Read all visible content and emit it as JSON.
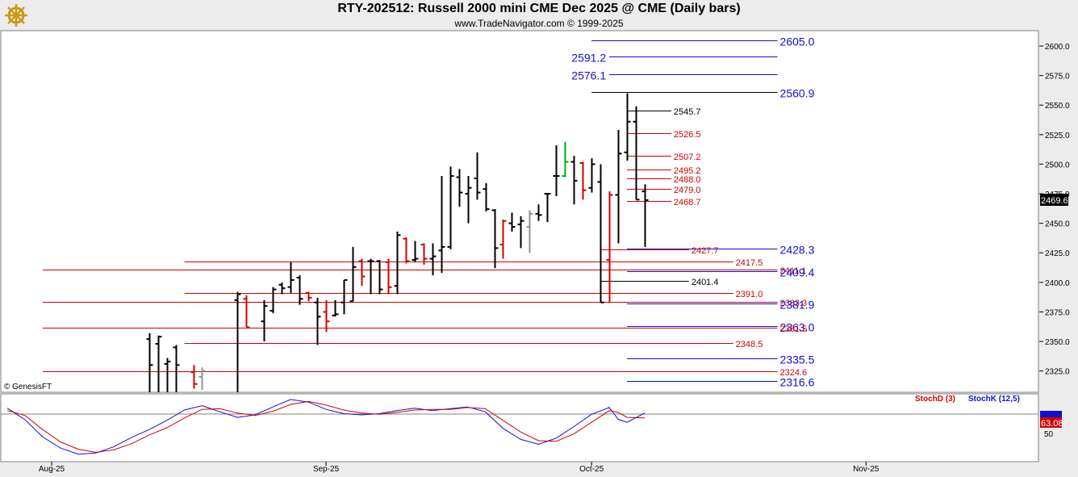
{
  "header": {
    "title": "RTY-202512:  Russell 2000 mini CME Dec 2025 @ CME  (Daily bars)",
    "subtitle": "www.TradeNavigator.com © 1999-2025"
  },
  "watermark": "© GenesisFT",
  "colors": {
    "blue": "#1010d0",
    "red": "#d00000",
    "black": "#000000",
    "stochD": "#d00000",
    "stochK": "#1010d0"
  },
  "chart_data": {
    "type": "ohlc",
    "price_axis": {
      "ticks": [
        "2600.0",
        "2575.0",
        "2550.0",
        "2525.0",
        "2500.0",
        "2475.0",
        "2450.0",
        "2425.0",
        "2400.0",
        "2375.0",
        "2350.0",
        "2325.0"
      ],
      "range": [
        2307,
        2613
      ]
    },
    "last_price": "2469.6",
    "x_labels": [
      {
        "label": "Aug-25",
        "t": 6
      },
      {
        "label": "Sep-25",
        "t": 37
      },
      {
        "label": "Oct-25",
        "t": 67
      },
      {
        "label": "Nov-25",
        "t": 98
      }
    ],
    "bars": [
      {
        "t": 17,
        "o": 2352,
        "h": 2357,
        "l": 2300,
        "c": 2330,
        "color": "black"
      },
      {
        "t": 18,
        "o": 2348,
        "h": 2355,
        "l": 2300,
        "c": 2354,
        "color": "black"
      },
      {
        "t": 19,
        "o": 2331,
        "h": 2336,
        "l": 2300,
        "c": 2333,
        "color": "black"
      },
      {
        "t": 20,
        "o": 2345,
        "h": 2347,
        "l": 2300,
        "c": 2330,
        "color": "black"
      },
      {
        "t": 22,
        "o": 2324,
        "h": 2330,
        "l": 2310,
        "c": 2314,
        "color": "red"
      },
      {
        "t": 23,
        "o": 2320,
        "h": 2328,
        "l": 2309,
        "c": 2325,
        "color": "gray"
      },
      {
        "t": 27,
        "o": 2385,
        "h": 2392,
        "l": 2300,
        "c": 2390,
        "color": "black"
      },
      {
        "t": 28,
        "o": 2386,
        "h": 2389,
        "l": 2362,
        "c": 2362,
        "color": "red"
      },
      {
        "t": 30,
        "o": 2367,
        "h": 2385,
        "l": 2350,
        "c": 2380,
        "color": "black"
      },
      {
        "t": 31,
        "o": 2376,
        "h": 2396,
        "l": 2374,
        "c": 2394,
        "color": "black"
      },
      {
        "t": 32,
        "o": 2398,
        "h": 2400,
        "l": 2390,
        "c": 2395,
        "color": "black"
      },
      {
        "t": 33,
        "o": 2396,
        "h": 2417,
        "l": 2391,
        "c": 2402,
        "color": "black"
      },
      {
        "t": 34,
        "o": 2404,
        "h": 2406,
        "l": 2381,
        "c": 2386,
        "color": "black"
      },
      {
        "t": 35,
        "o": 2391,
        "h": 2392,
        "l": 2384,
        "c": 2387,
        "color": "red"
      },
      {
        "t": 36,
        "o": 2383,
        "h": 2387,
        "l": 2347,
        "c": 2371,
        "color": "black"
      },
      {
        "t": 37,
        "o": 2375,
        "h": 2385,
        "l": 2358,
        "c": 2367,
        "color": "red"
      },
      {
        "t": 38,
        "o": 2372,
        "h": 2385,
        "l": 2371,
        "c": 2373,
        "color": "black"
      },
      {
        "t": 39,
        "o": 2383,
        "h": 2402,
        "l": 2373,
        "c": 2402,
        "color": "black"
      },
      {
        "t": 40,
        "o": 2384,
        "h": 2430,
        "l": 2384,
        "c": 2413,
        "color": "black"
      },
      {
        "t": 41,
        "o": 2418,
        "h": 2420,
        "l": 2397,
        "c": 2405,
        "color": "red"
      },
      {
        "t": 42,
        "o": 2418,
        "h": 2420,
        "l": 2390,
        "c": 2418,
        "color": "black"
      },
      {
        "t": 43,
        "o": 2418,
        "h": 2419,
        "l": 2390,
        "c": 2394,
        "color": "black"
      },
      {
        "t": 44,
        "o": 2417,
        "h": 2420,
        "l": 2390,
        "c": 2396,
        "color": "red"
      },
      {
        "t": 45,
        "o": 2397,
        "h": 2443,
        "l": 2390,
        "c": 2440,
        "color": "black"
      },
      {
        "t": 46,
        "o": 2437,
        "h": 2438,
        "l": 2416,
        "c": 2418,
        "color": "red"
      },
      {
        "t": 47,
        "o": 2419,
        "h": 2435,
        "l": 2417,
        "c": 2420,
        "color": "black"
      },
      {
        "t": 48,
        "o": 2432,
        "h": 2433,
        "l": 2415,
        "c": 2420,
        "color": "red"
      },
      {
        "t": 49,
        "o": 2420,
        "h": 2433,
        "l": 2406,
        "c": 2422,
        "color": "black"
      },
      {
        "t": 50,
        "o": 2427,
        "h": 2490,
        "l": 2408,
        "c": 2430,
        "color": "black"
      },
      {
        "t": 51,
        "o": 2430,
        "h": 2498,
        "l": 2428,
        "c": 2490,
        "color": "black"
      },
      {
        "t": 52,
        "o": 2489,
        "h": 2496,
        "l": 2464,
        "c": 2476,
        "color": "black"
      },
      {
        "t": 53,
        "o": 2475,
        "h": 2490,
        "l": 2450,
        "c": 2480,
        "color": "black"
      },
      {
        "t": 54,
        "o": 2488,
        "h": 2510,
        "l": 2470,
        "c": 2476,
        "color": "black"
      },
      {
        "t": 55,
        "o": 2479,
        "h": 2484,
        "l": 2460,
        "c": 2462,
        "color": "black"
      },
      {
        "t": 56,
        "o": 2461,
        "h": 2462,
        "l": 2412,
        "c": 2429,
        "color": "black"
      },
      {
        "t": 57,
        "o": 2432,
        "h": 2453,
        "l": 2420,
        "c": 2452,
        "color": "red"
      },
      {
        "t": 58,
        "o": 2450,
        "h": 2459,
        "l": 2443,
        "c": 2447,
        "color": "black"
      },
      {
        "t": 59,
        "o": 2449,
        "h": 2456,
        "l": 2429,
        "c": 2452,
        "color": "black"
      },
      {
        "t": 60,
        "o": 2447,
        "h": 2461,
        "l": 2425,
        "c": 2458,
        "color": "gray"
      },
      {
        "t": 61,
        "o": 2458,
        "h": 2466,
        "l": 2452,
        "c": 2457,
        "color": "black"
      },
      {
        "t": 62,
        "o": 2475,
        "h": 2475,
        "l": 2451,
        "c": 2475,
        "color": "black"
      },
      {
        "t": 63,
        "o": 2490,
        "h": 2516,
        "l": 2473,
        "c": 2490,
        "color": "black"
      },
      {
        "t": 64,
        "o": 2490,
        "h": 2519,
        "l": 2489,
        "c": 2502,
        "color": "green"
      },
      {
        "t": 65,
        "o": 2502,
        "h": 2507,
        "l": 2466,
        "c": 2486,
        "color": "black"
      },
      {
        "t": 66,
        "o": 2501,
        "h": 2502,
        "l": 2470,
        "c": 2478,
        "color": "red"
      },
      {
        "t": 67,
        "o": 2480,
        "h": 2505,
        "l": 2476,
        "c": 2500,
        "color": "black"
      },
      {
        "t": 68,
        "o": 2485,
        "h": 2500,
        "l": 2383,
        "c": 2383,
        "color": "black"
      },
      {
        "t": 69,
        "o": 2419,
        "h": 2477,
        "l": 2383,
        "c": 2474,
        "color": "red"
      },
      {
        "t": 70,
        "o": 2474,
        "h": 2529,
        "l": 2433,
        "c": 2509,
        "color": "black"
      },
      {
        "t": 71,
        "o": 2510,
        "h": 2560,
        "l": 2503,
        "c": 2536,
        "color": "black"
      },
      {
        "t": 72,
        "o": 2536,
        "h": 2549,
        "l": 2470,
        "c": 2470,
        "color": "black"
      },
      {
        "t": 73,
        "o": 2477,
        "h": 2483,
        "l": 2430,
        "c": 2469.6,
        "color": "black"
      }
    ],
    "level_lines": [
      {
        "value": 2605.0,
        "label": "2605.0",
        "color": "blue",
        "big": true,
        "t1": 67,
        "t2": 88
      },
      {
        "value": 2591.2,
        "label": "2591.2",
        "color": "blue",
        "big": true,
        "t1": 69,
        "t2": 88,
        "label_left": true
      },
      {
        "value": 2576.1,
        "label": "2576.1",
        "color": "blue",
        "big": true,
        "t1": 69,
        "t2": 88,
        "label_left": true
      },
      {
        "value": 2560.9,
        "label": "2560.9",
        "color": "black",
        "labelColor": "blue",
        "big": true,
        "t1": 67,
        "t2": 88
      },
      {
        "value": 2545.7,
        "label": "2545.7",
        "color": "black",
        "t1": 71,
        "t2": 76
      },
      {
        "value": 2526.5,
        "label": "2526.5",
        "color": "red",
        "t1": 71,
        "t2": 76
      },
      {
        "value": 2507.2,
        "label": "2507.2",
        "color": "red",
        "t1": 71,
        "t2": 76
      },
      {
        "value": 2495.2,
        "label": "2495.2",
        "color": "red",
        "t1": 71,
        "t2": 76
      },
      {
        "value": 2488.0,
        "label": "2488.0",
        "color": "red",
        "t1": 71,
        "t2": 76
      },
      {
        "value": 2479.0,
        "label": "2479.0",
        "color": "red",
        "t1": 71,
        "t2": 76
      },
      {
        "value": 2468.7,
        "label": "2468.7",
        "color": "red",
        "t1": 71,
        "t2": 76
      },
      {
        "value": 2428.3,
        "label": "2428.3",
        "color": "blue",
        "big": true,
        "t1": 71,
        "t2": 88
      },
      {
        "value": 2427.7,
        "label": "2427.7",
        "color": "red",
        "t1": 68,
        "t2": 78
      },
      {
        "value": 2417.5,
        "label": "2417.5",
        "color": "red",
        "t1": 21,
        "t2": 83
      },
      {
        "value": 2411.1,
        "label": "2411.1",
        "color": "red",
        "t1": 5,
        "t2": 88
      },
      {
        "value": 2409.4,
        "label": "2409.4",
        "color": "blue",
        "big": true,
        "t1": 71,
        "t2": 88
      },
      {
        "value": 2401.4,
        "label": "2401.4",
        "color": "black",
        "t1": 68,
        "t2": 78
      },
      {
        "value": 2391.0,
        "label": "2391.0",
        "color": "red",
        "t1": 21,
        "t2": 83
      },
      {
        "value": 2383.3,
        "label": "2383.3",
        "color": "red",
        "t1": 5,
        "t2": 88
      },
      {
        "value": 2381.9,
        "label": "2381.9",
        "color": "blue",
        "big": true,
        "t1": 71,
        "t2": 88
      },
      {
        "value": 2363.0,
        "label": "2363.0",
        "color": "blue",
        "big": true,
        "t1": 71,
        "t2": 88
      },
      {
        "value": 2361.5,
        "label": "2361.5",
        "color": "red",
        "t1": 5,
        "t2": 88
      },
      {
        "value": 2348.5,
        "label": "2348.5",
        "color": "red",
        "t1": 21,
        "t2": 83
      },
      {
        "value": 2335.5,
        "label": "2335.5",
        "color": "blue",
        "big": true,
        "t1": 71,
        "t2": 88
      },
      {
        "value": 2324.6,
        "label": "2324.6",
        "color": "red",
        "t1": 5,
        "t2": 88
      },
      {
        "value": 2316.6,
        "label": "2316.6",
        "color": "blue",
        "big": true,
        "t1": 71,
        "t2": 88
      }
    ],
    "indicator": {
      "legend": [
        {
          "label": "StochD (3)",
          "color": "red"
        },
        {
          "label": "StochK (12,5)",
          "color": "blue"
        }
      ],
      "axis_tick": "50",
      "range": [
        0,
        100
      ],
      "values_shown": [
        "63.08"
      ],
      "stochK": [
        [
          1,
          82
        ],
        [
          3,
          63
        ],
        [
          5,
          35
        ],
        [
          7,
          17
        ],
        [
          9,
          7
        ],
        [
          11,
          9
        ],
        [
          13,
          19
        ],
        [
          15,
          34
        ],
        [
          17,
          47
        ],
        [
          19,
          62
        ],
        [
          21,
          79
        ],
        [
          23,
          86
        ],
        [
          25,
          76
        ],
        [
          27,
          67
        ],
        [
          29,
          71
        ],
        [
          31,
          84
        ],
        [
          33,
          96
        ],
        [
          35,
          92
        ],
        [
          37,
          80
        ],
        [
          39,
          73
        ],
        [
          41,
          71
        ],
        [
          43,
          73
        ],
        [
          45,
          78
        ],
        [
          47,
          82
        ],
        [
          49,
          78
        ],
        [
          51,
          81
        ],
        [
          53,
          84
        ],
        [
          55,
          76
        ],
        [
          57,
          49
        ],
        [
          59,
          31
        ],
        [
          61,
          23
        ],
        [
          63,
          33
        ],
        [
          65,
          52
        ],
        [
          67,
          72
        ],
        [
          69,
          83
        ],
        [
          70,
          64
        ],
        [
          71,
          59
        ],
        [
          73,
          74
        ]
      ],
      "stochD": [
        [
          1,
          78
        ],
        [
          3,
          70
        ],
        [
          5,
          47
        ],
        [
          7,
          27
        ],
        [
          9,
          15
        ],
        [
          11,
          10
        ],
        [
          13,
          14
        ],
        [
          15,
          24
        ],
        [
          17,
          38
        ],
        [
          19,
          50
        ],
        [
          21,
          66
        ],
        [
          23,
          80
        ],
        [
          25,
          81
        ],
        [
          27,
          74
        ],
        [
          29,
          70
        ],
        [
          31,
          77
        ],
        [
          33,
          88
        ],
        [
          35,
          93
        ],
        [
          37,
          87
        ],
        [
          39,
          79
        ],
        [
          41,
          74
        ],
        [
          43,
          72
        ],
        [
          45,
          75
        ],
        [
          47,
          79
        ],
        [
          49,
          80
        ],
        [
          51,
          80
        ],
        [
          53,
          83
        ],
        [
          55,
          81
        ],
        [
          57,
          62
        ],
        [
          59,
          43
        ],
        [
          61,
          29
        ],
        [
          63,
          28
        ],
        [
          65,
          40
        ],
        [
          67,
          59
        ],
        [
          69,
          78
        ],
        [
          70,
          75
        ],
        [
          71,
          67
        ],
        [
          73,
          66
        ]
      ]
    }
  }
}
